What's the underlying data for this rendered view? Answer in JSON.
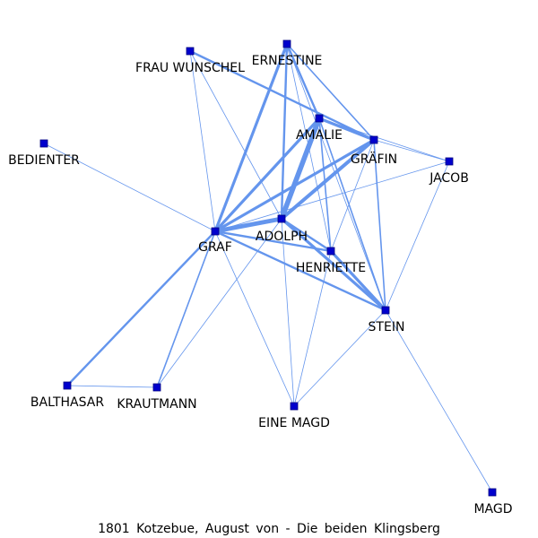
{
  "caption": "1801 Kotzebue, August von - Die beiden Klingsberg",
  "colors": {
    "edge": "#6495ed",
    "node": "#0000cd",
    "text": "#000000"
  },
  "nodes": [
    {
      "id": "ernestine",
      "label": "ERNESTINE"
    },
    {
      "id": "frau_wunschel",
      "label": "FRAU WUNSCHEL"
    },
    {
      "id": "amalie",
      "label": "AMALIE"
    },
    {
      "id": "grafin",
      "label": "GRÄFIN"
    },
    {
      "id": "jacob",
      "label": "JACOB"
    },
    {
      "id": "bedienter",
      "label": "BEDIENTER"
    },
    {
      "id": "adolph",
      "label": "ADOLPH"
    },
    {
      "id": "graf",
      "label": "GRAF"
    },
    {
      "id": "henriette",
      "label": "HENRIETTE"
    },
    {
      "id": "stein",
      "label": "STEIN"
    },
    {
      "id": "balthasar",
      "label": "BALTHASAR"
    },
    {
      "id": "krautmann",
      "label": "KRAUTMANN"
    },
    {
      "id": "eine_magd",
      "label": "EINE MAGD"
    },
    {
      "id": "magd",
      "label": "MAGD"
    }
  ],
  "edges": [
    {
      "source": "amalie",
      "target": "adolph",
      "weight": 7
    },
    {
      "source": "graf",
      "target": "adolph",
      "weight": 6
    },
    {
      "source": "grafin",
      "target": "adolph",
      "weight": 5
    },
    {
      "source": "graf",
      "target": "amalie",
      "weight": 4
    },
    {
      "source": "graf",
      "target": "grafin",
      "weight": 4
    },
    {
      "source": "graf",
      "target": "ernestine",
      "weight": 4
    },
    {
      "source": "amalie",
      "target": "grafin",
      "weight": 4
    },
    {
      "source": "adolph",
      "target": "stein",
      "weight": 4
    },
    {
      "source": "henriette",
      "target": "stein",
      "weight": 4
    },
    {
      "source": "ernestine",
      "target": "adolph",
      "weight": 3
    },
    {
      "source": "ernestine",
      "target": "amalie",
      "weight": 3
    },
    {
      "source": "frau_wunschel",
      "target": "grafin",
      "weight": 3
    },
    {
      "source": "graf",
      "target": "henriette",
      "weight": 3
    },
    {
      "source": "graf",
      "target": "stein",
      "weight": 3
    },
    {
      "source": "adolph",
      "target": "henriette",
      "weight": 3
    },
    {
      "source": "graf",
      "target": "balthasar",
      "weight": 3
    },
    {
      "source": "ernestine",
      "target": "grafin",
      "weight": 2
    },
    {
      "source": "amalie",
      "target": "henriette",
      "weight": 2
    },
    {
      "source": "amalie",
      "target": "stein",
      "weight": 2
    },
    {
      "source": "grafin",
      "target": "stein",
      "weight": 2
    },
    {
      "source": "graf",
      "target": "krautmann",
      "weight": 2
    },
    {
      "source": "frau_wunschel",
      "target": "adolph",
      "weight": 1
    },
    {
      "source": "frau_wunschel",
      "target": "graf",
      "weight": 1
    },
    {
      "source": "ernestine",
      "target": "henriette",
      "weight": 1
    },
    {
      "source": "ernestine",
      "target": "stein",
      "weight": 1
    },
    {
      "source": "amalie",
      "target": "jacob",
      "weight": 1
    },
    {
      "source": "grafin",
      "target": "jacob",
      "weight": 1
    },
    {
      "source": "grafin",
      "target": "henriette",
      "weight": 1
    },
    {
      "source": "jacob",
      "target": "graf",
      "weight": 1
    },
    {
      "source": "jacob",
      "target": "stein",
      "weight": 1
    },
    {
      "source": "bedienter",
      "target": "graf",
      "weight": 1
    },
    {
      "source": "adolph",
      "target": "eine_magd",
      "weight": 1
    },
    {
      "source": "adolph",
      "target": "krautmann",
      "weight": 1
    },
    {
      "source": "henriette",
      "target": "eine_magd",
      "weight": 1
    },
    {
      "source": "graf",
      "target": "eine_magd",
      "weight": 1
    },
    {
      "source": "stein",
      "target": "eine_magd",
      "weight": 1
    },
    {
      "source": "stein",
      "target": "magd",
      "weight": 1
    },
    {
      "source": "balthasar",
      "target": "krautmann",
      "weight": 1
    }
  ]
}
